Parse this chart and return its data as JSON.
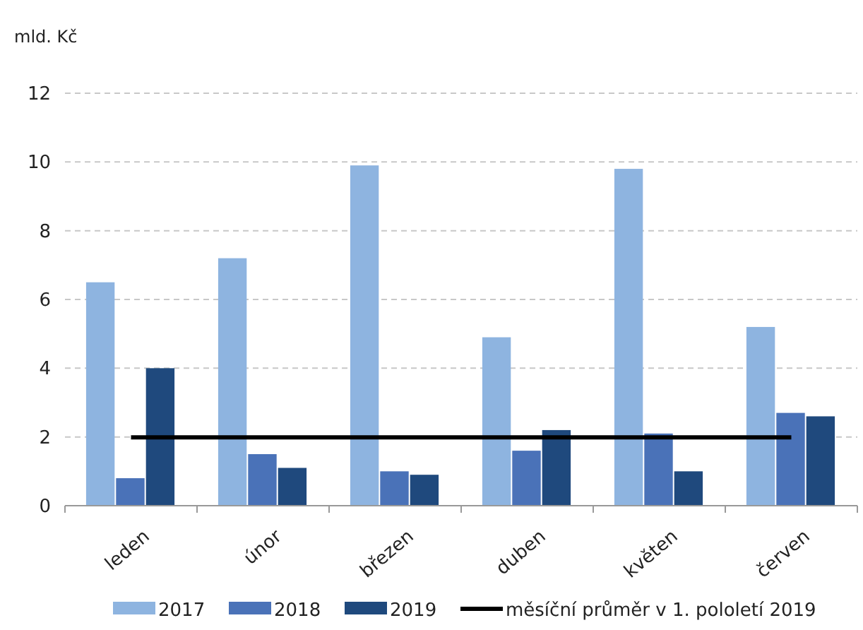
{
  "chart_data": {
    "type": "bar",
    "ylabel": "mld. Kč",
    "categories": [
      "leden",
      "únor",
      "březen",
      "duben",
      "květen",
      "červen"
    ],
    "series": [
      {
        "name": "2017",
        "color": "#8eb4e0",
        "values": [
          6.5,
          7.2,
          9.9,
          4.9,
          9.8,
          5.2
        ]
      },
      {
        "name": "2018",
        "color": "#4a72b8",
        "values": [
          0.8,
          1.5,
          1.0,
          1.6,
          2.1,
          2.7
        ]
      },
      {
        "name": "2019",
        "color": "#1f497d",
        "values": [
          4.0,
          1.1,
          0.9,
          2.2,
          1.0,
          2.6
        ]
      },
      {
        "name": "měsíční průměr v 1. pololetí 2019",
        "type": "line",
        "color": "#000000",
        "values": [
          1.99,
          1.99,
          1.99,
          1.99,
          1.99,
          1.99
        ]
      }
    ],
    "ylim": [
      0,
      12
    ],
    "yticks": [
      0,
      2,
      4,
      6,
      8,
      10,
      12
    ],
    "grid": "y",
    "legend": "bottom"
  }
}
